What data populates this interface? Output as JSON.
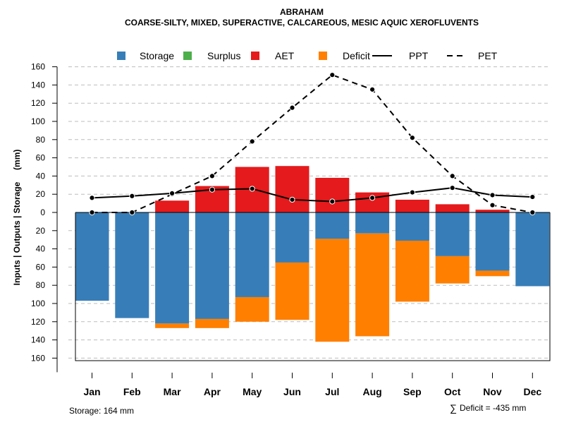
{
  "chart_data": {
    "type": "bar",
    "title": "ABRAHAM",
    "subtitle": "COARSE-SILTY, MIXED, SUPERACTIVE, CALCAREOUS, MESIC AQUIC XEROFLUVENTS",
    "ylabel": "Inputs | Outputs | Storage     (mm)",
    "categories": [
      "Jan",
      "Feb",
      "Mar",
      "Apr",
      "May",
      "Jun",
      "Jul",
      "Aug",
      "Sep",
      "Oct",
      "Nov",
      "Dec"
    ],
    "ylim": [
      -160,
      160
    ],
    "yticks": [
      160,
      140,
      120,
      100,
      80,
      60,
      40,
      20,
      0,
      -20,
      -40,
      -60,
      -80,
      -100,
      -120,
      -140,
      -160
    ],
    "ytick_labels": [
      "160",
      "140",
      "120",
      "100",
      "80",
      "60",
      "40",
      "20",
      "0",
      "20",
      "40",
      "60",
      "80",
      "100",
      "120",
      "140",
      "160"
    ],
    "grid": true,
    "legend_position": "top",
    "legend": [
      {
        "label": "Storage",
        "kind": "box",
        "color": "#377EB8"
      },
      {
        "label": "Surplus",
        "kind": "box",
        "color": "#4DAF4A"
      },
      {
        "label": "AET",
        "kind": "box",
        "color": "#E41A1C"
      },
      {
        "label": "Deficit",
        "kind": "box",
        "color": "#FF7F00"
      },
      {
        "label": "PPT",
        "kind": "solid-line",
        "color": "#000000"
      },
      {
        "label": "PET",
        "kind": "dashed-line",
        "color": "#000000"
      }
    ],
    "series": [
      {
        "name": "AET",
        "color": "#E41A1C",
        "values": [
          0,
          0,
          13,
          29,
          50,
          51,
          38,
          22,
          14,
          9,
          3,
          0
        ]
      },
      {
        "name": "Storage",
        "color": "#377EB8",
        "values": [
          -97,
          -116,
          -122,
          -117,
          -93,
          -55,
          -29,
          -23,
          -31,
          -48,
          -64,
          -81
        ]
      },
      {
        "name": "Deficit",
        "color": "#FF7F00",
        "values": [
          0,
          0,
          -5,
          -10,
          -27,
          -63,
          -113,
          -113,
          -67,
          -30,
          -6,
          0
        ]
      },
      {
        "name": "PPT",
        "color": "#000000",
        "values": [
          16,
          18,
          21,
          25,
          26,
          14,
          12,
          16,
          22,
          27,
          19,
          17
        ]
      },
      {
        "name": "PET",
        "color": "#000000",
        "values": [
          0,
          0,
          20,
          40,
          78,
          115,
          151,
          135,
          82,
          40,
          8,
          0
        ]
      }
    ]
  },
  "footer": {
    "storage": "Storage: 164 mm",
    "deficit_symbol": "∑",
    "deficit": "Deficit = -435 mm"
  }
}
